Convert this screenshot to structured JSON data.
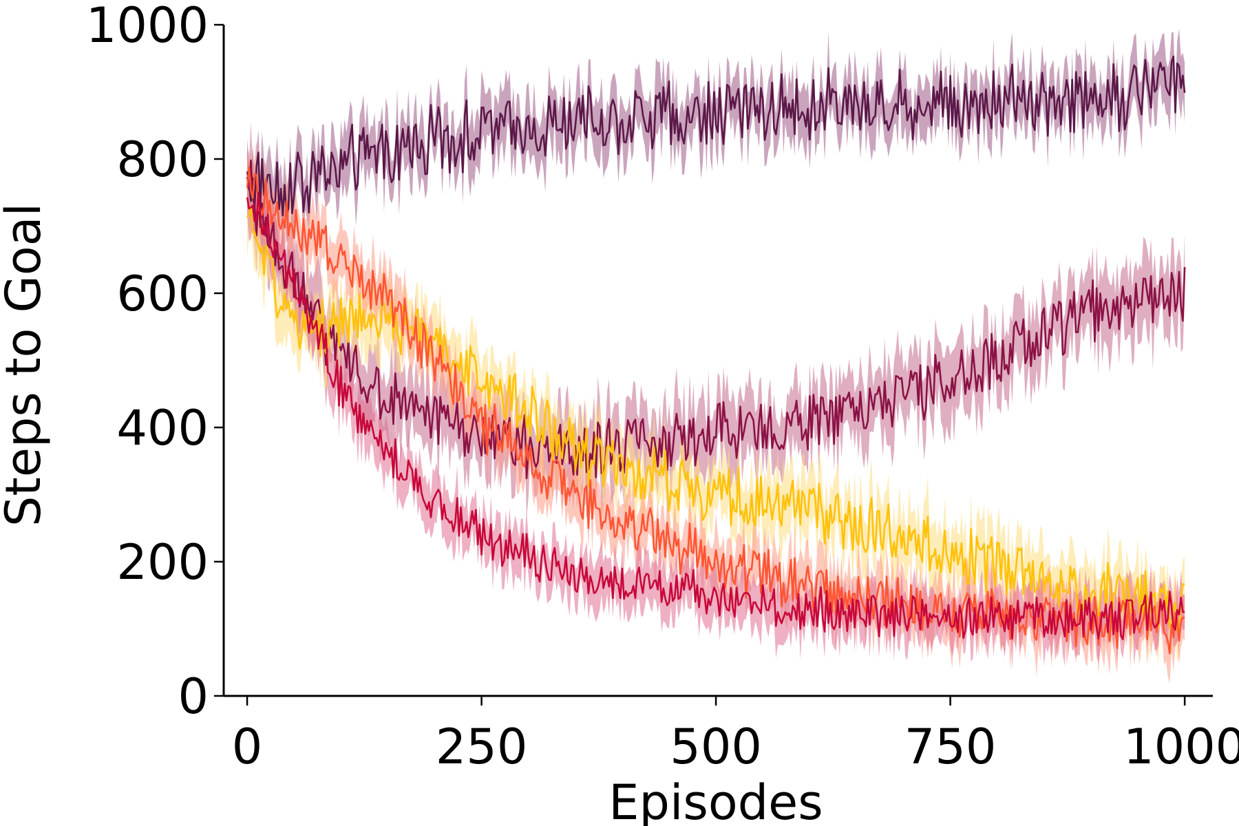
{
  "chart_data": {
    "type": "line",
    "title": "",
    "xlabel": "Episodes",
    "ylabel": "Steps to Goal",
    "xlim": [
      -25,
      1030
    ],
    "ylim": [
      0,
      1000
    ],
    "x_ticks": [
      0,
      250,
      500,
      750,
      1000
    ],
    "y_ticks": [
      0,
      200,
      400,
      600,
      800,
      1000
    ],
    "grid": false,
    "legend": "none",
    "noise_note": "noisy per-episode curves with shaded variance bands",
    "series": [
      {
        "color": "#5B1848",
        "band_color": "#9E5A86",
        "x": [
          0,
          50,
          100,
          150,
          200,
          250,
          300,
          350,
          400,
          450,
          500,
          550,
          600,
          650,
          700,
          750,
          800,
          850,
          900,
          950,
          1000
        ],
        "values": [
          770,
          760,
          790,
          810,
          830,
          840,
          850,
          855,
          860,
          865,
          870,
          875,
          878,
          880,
          882,
          885,
          888,
          890,
          893,
          895,
          930
        ],
        "noise": 45,
        "band": 40
      },
      {
        "color": "#8B1245",
        "band_color": "#C46B8E",
        "x": [
          0,
          50,
          100,
          150,
          200,
          250,
          300,
          350,
          400,
          450,
          500,
          550,
          600,
          650,
          700,
          750,
          800,
          850,
          900,
          950,
          1000
        ],
        "values": [
          760,
          620,
          500,
          440,
          410,
          390,
          370,
          365,
          370,
          380,
          390,
          400,
          410,
          425,
          445,
          470,
          500,
          540,
          570,
          590,
          600
        ],
        "noise": 40,
        "band": 50
      },
      {
        "color": "#FFC20A",
        "band_color": "#FFDD80",
        "x": [
          0,
          50,
          100,
          150,
          200,
          250,
          300,
          350,
          400,
          450,
          500,
          550,
          600,
          650,
          700,
          750,
          800,
          850,
          900,
          950,
          1000
        ],
        "values": [
          720,
          540,
          560,
          560,
          530,
          470,
          420,
          370,
          340,
          320,
          300,
          285,
          270,
          255,
          240,
          215,
          190,
          170,
          155,
          145,
          140
        ],
        "noise": 40,
        "band": 45
      },
      {
        "color": "#FF5533",
        "band_color": "#FF9A85",
        "x": [
          0,
          50,
          100,
          150,
          200,
          250,
          300,
          350,
          400,
          450,
          500,
          550,
          600,
          650,
          700,
          750,
          800,
          850,
          900,
          950,
          1000
        ],
        "values": [
          760,
          700,
          650,
          600,
          500,
          410,
          350,
          300,
          260,
          230,
          200,
          180,
          160,
          145,
          135,
          125,
          120,
          115,
          110,
          108,
          105
        ],
        "noise": 35,
        "band": 40
      },
      {
        "color": "#C8073A",
        "band_color": "#E07090",
        "x": [
          0,
          50,
          100,
          150,
          200,
          250,
          300,
          350,
          400,
          450,
          500,
          550,
          600,
          650,
          700,
          750,
          800,
          850,
          900,
          950,
          1000
        ],
        "values": [
          760,
          620,
          460,
          360,
          290,
          240,
          205,
          185,
          170,
          160,
          150,
          140,
          130,
          125,
          120,
          118,
          116,
          115,
          115,
          120,
          125
        ],
        "noise": 28,
        "band": 35
      }
    ]
  }
}
